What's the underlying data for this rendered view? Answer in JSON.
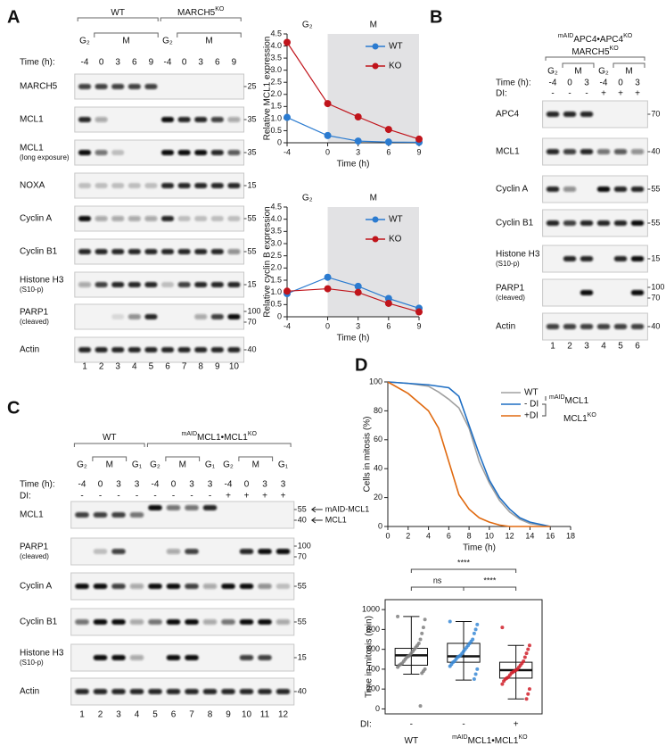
{
  "panels": [
    "A",
    "B",
    "C",
    "D"
  ],
  "blot_a": {
    "groups": [
      [
        {
          "t": "WT"
        }
      ],
      [
        {
          "t": "MARCH5"
        },
        {
          "t": "KO",
          "sup": true
        }
      ]
    ],
    "phases": [
      "G₂",
      "M",
      "G₂",
      "M"
    ],
    "time_label": "Time (h):",
    "times": [
      "-4",
      "0",
      "3",
      "6",
      "9",
      "-4",
      "0",
      "3",
      "6",
      "9"
    ],
    "rows": [
      {
        "label": "MARCH5",
        "markers": [
          "25"
        ]
      },
      {
        "label": "MCL1",
        "markers": [
          "35"
        ]
      },
      {
        "label": "MCL1",
        "note": "(long exposure)",
        "markers": [
          "35"
        ]
      },
      {
        "label": "NOXA",
        "markers": [
          "15"
        ]
      },
      {
        "label": "Cyclin A",
        "markers": [
          "55"
        ]
      },
      {
        "label": "Cyclin B1",
        "markers": [
          "55"
        ]
      },
      {
        "label": "Histone H3",
        "note": "(S10-p)",
        "markers": [
          "15"
        ]
      },
      {
        "label": "PARP1",
        "note": "(cleaved)",
        "markers": [
          "100",
          "70"
        ]
      },
      {
        "label": "Actin",
        "markers": [
          "40"
        ]
      }
    ],
    "lanes": [
      "1",
      "2",
      "3",
      "4",
      "5",
      "6",
      "7",
      "8",
      "9",
      "10"
    ]
  },
  "blot_b": {
    "groups": [
      [
        {
          "t": "mAID",
          "sup": true
        },
        {
          "t": "APC4•APC4"
        },
        {
          "t": "KO",
          "sup": true
        }
      ],
      [
        {
          "t": "MARCH5"
        },
        {
          "t": "KO",
          "sup": true
        }
      ]
    ],
    "phases": [
      "G₂",
      "M",
      "G₂",
      "M"
    ],
    "time_label": "Time (h):",
    "times": [
      "-4",
      "0",
      "3",
      "-4",
      "0",
      "3"
    ],
    "di_label": "DI:",
    "di": [
      "-",
      "-",
      "-",
      "+",
      "+",
      "+"
    ],
    "rows": [
      {
        "label": "APC4",
        "markers": [
          "70"
        ]
      },
      {
        "label": "MCL1",
        "markers": [
          "40"
        ]
      },
      {
        "label": "Cyclin A",
        "markers": [
          "55"
        ]
      },
      {
        "label": "Cyclin B1",
        "markers": [
          "55"
        ]
      },
      {
        "label": "Histone H3",
        "note": "(S10-p)",
        "markers": [
          "15"
        ]
      },
      {
        "label": "PARP1",
        "note": "(cleaved)",
        "markers": [
          "100",
          "70"
        ]
      },
      {
        "label": "Actin",
        "markers": [
          "40"
        ]
      }
    ],
    "lanes": [
      "1",
      "2",
      "3",
      "4",
      "5",
      "6"
    ]
  },
  "blot_c": {
    "groups": [
      [
        {
          "t": "WT"
        }
      ],
      [
        {
          "t": "mAID",
          "sup": true
        },
        {
          "t": "MCL1•MCL1"
        },
        {
          "t": "KO",
          "sup": true
        }
      ]
    ],
    "phases": [
      "G₂",
      "M",
      "G₁",
      "G₂",
      "M",
      "G₁",
      "G₂",
      "M",
      "G₁"
    ],
    "time_label": "Time (h):",
    "times": [
      "-4",
      "0",
      "3",
      "3",
      "-4",
      "0",
      "3",
      "3",
      "-4",
      "0",
      "3",
      "3"
    ],
    "di_label": "DI:",
    "di": [
      "-",
      "-",
      "-",
      "-",
      "-",
      "-",
      "-",
      "-",
      "+",
      "+",
      "+",
      "+"
    ],
    "rows": [
      {
        "label": "MCL1",
        "markers": [
          "55",
          "40"
        ],
        "arrows": [
          "mAID-MCL1",
          "MCL1"
        ]
      },
      {
        "label": "PARP1",
        "note": "(cleaved)",
        "markers": [
          "100",
          "70"
        ]
      },
      {
        "label": "Cyclin A",
        "markers": [
          "55"
        ]
      },
      {
        "label": "Cyclin B1",
        "markers": [
          "55"
        ]
      },
      {
        "label": "Histone H3",
        "note": "(S10-p)",
        "markers": [
          "15"
        ]
      },
      {
        "label": "Actin",
        "markers": [
          "40"
        ]
      }
    ],
    "lanes": [
      "1",
      "2",
      "3",
      "4",
      "5",
      "6",
      "7",
      "8",
      "9",
      "10",
      "11",
      "12"
    ]
  },
  "chart_data": [
    {
      "type": "line",
      "ylabel": "Relative MCL1 expression",
      "xlabel": "Time (h)",
      "x": [
        -4,
        0,
        3,
        6,
        9
      ],
      "xlim": [
        -4,
        9
      ],
      "xticks": [
        -4,
        0,
        3,
        6,
        9
      ],
      "ylim": [
        0,
        4.5
      ],
      "yticks": [
        0,
        0.5,
        {
          "value": 1,
          "label": "1.0"
        },
        1.5,
        {
          "value": 2,
          "label": "2.0"
        },
        2.5,
        {
          "value": 3,
          "label": "3.0"
        },
        3.5,
        {
          "value": 4,
          "label": "4.0"
        },
        4.5
      ],
      "phases": [
        {
          "label": "G₂",
          "start": -4,
          "end": 0
        },
        {
          "label": "M",
          "start": 0,
          "end": 9,
          "shaded": true
        }
      ],
      "legend": "upper right",
      "markers": true,
      "series": [
        {
          "name": "WT",
          "color": "#2b7bd0",
          "values": [
            1.05,
            0.3,
            0.07,
            0.03,
            0.02
          ]
        },
        {
          "name": "KO",
          "color": "#c0141b",
          "values": [
            4.15,
            1.62,
            1.07,
            0.55,
            0.15
          ]
        }
      ]
    },
    {
      "type": "line",
      "ylabel": "Relative cyclin B expression",
      "xlabel": "Time (h)",
      "x": [
        -4,
        0,
        3,
        6,
        9
      ],
      "xlim": [
        -4,
        9
      ],
      "xticks": [
        -4,
        0,
        3,
        6,
        9
      ],
      "ylim": [
        0,
        4.5
      ],
      "yticks": [
        0,
        0.5,
        {
          "value": 1,
          "label": "1.0"
        },
        1.5,
        {
          "value": 2,
          "label": "2.0"
        },
        2.5,
        {
          "value": 3,
          "label": "3.0"
        },
        3.5,
        {
          "value": 4,
          "label": "4.0"
        },
        4.5
      ],
      "phases": [
        {
          "label": "G₂",
          "start": -4,
          "end": 0
        },
        {
          "label": "M",
          "start": 0,
          "end": 9,
          "shaded": true
        }
      ],
      "legend": "upper right",
      "markers": true,
      "series": [
        {
          "name": "WT",
          "color": "#2b7bd0",
          "values": [
            0.95,
            1.62,
            1.25,
            0.75,
            0.35
          ]
        },
        {
          "name": "KO",
          "color": "#c0141b",
          "values": [
            1.05,
            1.15,
            1.0,
            0.55,
            0.2
          ]
        }
      ]
    },
    {
      "type": "line",
      "ylabel": "Cells in mitosis (%)",
      "xlabel": "Time (h)",
      "x": [
        0,
        2,
        4,
        5,
        6,
        7,
        8,
        9,
        10,
        11,
        12,
        13,
        14,
        16
      ],
      "xlim": [
        0,
        18
      ],
      "xticks": [
        0,
        2,
        4,
        6,
        8,
        10,
        12,
        14,
        16,
        18
      ],
      "ylim": [
        0,
        100
      ],
      "yticks": [
        0,
        20,
        40,
        60,
        80,
        100
      ],
      "legend": "upper right",
      "markers": false,
      "legend_group": [
        [
          {
            "t": "mAID",
            "sup": true
          },
          {
            "t": "MCL1"
          }
        ],
        [
          {
            "t": "MCL1"
          },
          {
            "t": "KO",
            "sup": true
          }
        ]
      ],
      "series": [
        {
          "name": "WT",
          "color": "#a0a0a0",
          "values": [
            100,
            99,
            97,
            93,
            88,
            82,
            68,
            45,
            30,
            18,
            10,
            5,
            2,
            0
          ]
        },
        {
          "name": "- DI",
          "color": "#1f6fc4",
          "values": [
            100,
            99,
            98,
            97,
            96,
            90,
            70,
            50,
            32,
            20,
            12,
            6,
            3,
            0
          ]
        },
        {
          "name": "+DI",
          "color": "#e06a10",
          "values": [
            100,
            92,
            80,
            68,
            45,
            22,
            12,
            6,
            3,
            1,
            0,
            0,
            0,
            0
          ]
        }
      ]
    },
    {
      "type": "box",
      "ylabel": "Time in mitosis (min)",
      "ylim": [
        -50,
        1100
      ],
      "yticks": [
        0,
        200,
        400,
        600,
        800,
        1000
      ],
      "category_label": "DI:",
      "categories": [
        "-",
        "-",
        "+"
      ],
      "group_labels": [
        [
          {
            "t": "WT"
          }
        ],
        [
          {
            "t": "mAID",
            "sup": true
          },
          {
            "t": "MCL1•MCL1"
          },
          {
            "t": "KO",
            "sup": true
          }
        ]
      ],
      "significance": [
        "****",
        "ns",
        "****"
      ],
      "boxes": [
        {
          "color": "#808080",
          "min": 350,
          "q1": 440,
          "median": 540,
          "q3": 610,
          "max": 930,
          "points": [
            930,
            900,
            820,
            760,
            700,
            660,
            640,
            620,
            600,
            580,
            560,
            540,
            530,
            520,
            500,
            480,
            460,
            450,
            440,
            420,
            400,
            380,
            360,
            30
          ]
        },
        {
          "color": "#3a8ad6",
          "min": 290,
          "q1": 470,
          "median": 530,
          "q3": 660,
          "max": 880,
          "points": [
            880,
            850,
            800,
            760,
            700,
            680,
            660,
            640,
            620,
            600,
            580,
            560,
            540,
            530,
            520,
            500,
            480,
            470,
            450,
            430,
            400,
            350,
            300
          ]
        },
        {
          "color": "#d0202a",
          "min": 100,
          "q1": 310,
          "median": 390,
          "q3": 470,
          "max": 640,
          "points": [
            820,
            640,
            600,
            560,
            520,
            480,
            460,
            440,
            420,
            400,
            390,
            380,
            370,
            360,
            340,
            320,
            310,
            300,
            280,
            250,
            200,
            150,
            100
          ]
        }
      ]
    }
  ]
}
